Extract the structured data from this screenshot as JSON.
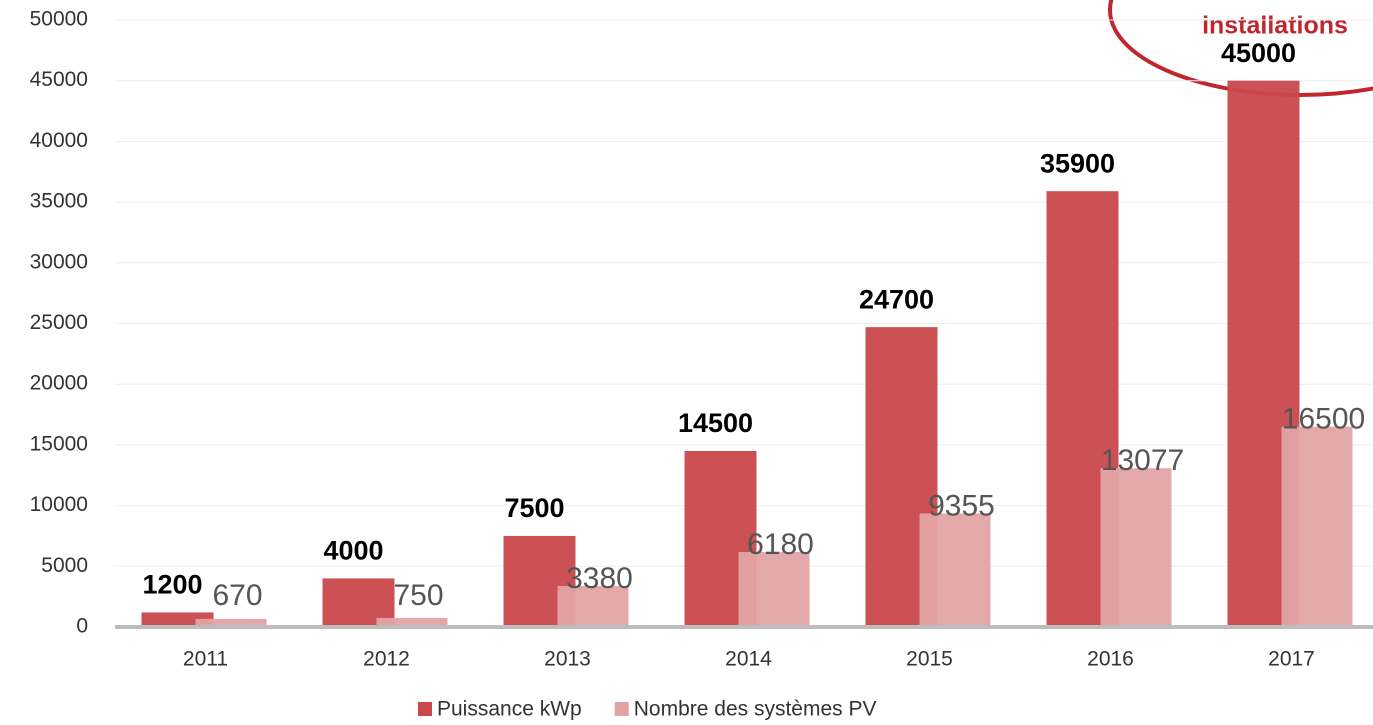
{
  "chart_data": {
    "type": "bar",
    "annotation": "installations",
    "categories": [
      "2011",
      "2012",
      "2013",
      "2014",
      "2015",
      "2016",
      "2017"
    ],
    "series": [
      {
        "name": "Puissance kWp",
        "color": "#c9484b",
        "values": [
          1200,
          4000,
          7500,
          14500,
          24700,
          35900,
          45000
        ]
      },
      {
        "name": "Nombre des systèmes PV",
        "color": "#e2a3a4",
        "values": [
          670,
          750,
          3380,
          6180,
          9355,
          13077,
          16500
        ]
      }
    ],
    "ylim": [
      0,
      50000
    ],
    "yticks": [
      0,
      5000,
      10000,
      15000,
      20000,
      25000,
      30000,
      35000,
      40000,
      45000,
      50000
    ],
    "grid": true
  }
}
